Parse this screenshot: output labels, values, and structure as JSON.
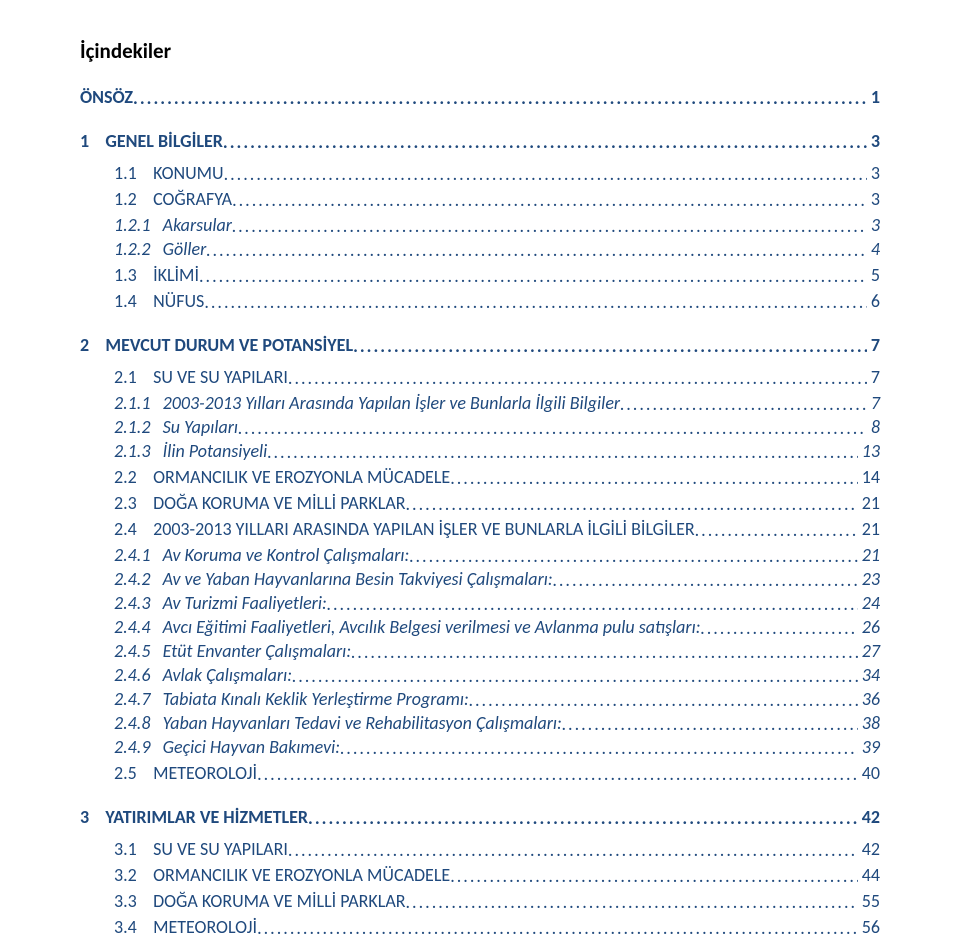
{
  "title": "İçindekiler",
  "color_primary": "#1f497d",
  "rows": [
    {
      "level": 0,
      "bold": true,
      "italic": false,
      "label": "ÖNSÖZ",
      "page": "1",
      "cls": "first-block"
    },
    {
      "level": 0,
      "bold": true,
      "italic": false,
      "label": "1    GENEL BİLGİLER",
      "page": "3"
    },
    {
      "level": 1,
      "bold": false,
      "italic": false,
      "smallcaps": true,
      "label": "1.1    KONUMU",
      "page": "3"
    },
    {
      "level": 1,
      "bold": false,
      "italic": false,
      "smallcaps": true,
      "label": "1.2    COĞRAFYA",
      "page": "3"
    },
    {
      "level": 2,
      "bold": false,
      "italic": true,
      "label": "1.2.1   Akarsular",
      "page": "3"
    },
    {
      "level": 2,
      "bold": false,
      "italic": true,
      "label": "1.2.2   Göller",
      "page": "4"
    },
    {
      "level": 1,
      "bold": false,
      "italic": false,
      "smallcaps": true,
      "label": "1.3    İKLİMİ",
      "page": "5"
    },
    {
      "level": 1,
      "bold": false,
      "italic": false,
      "smallcaps": true,
      "label": "1.4    NÜFUS",
      "page": "6"
    },
    {
      "level": 0,
      "bold": true,
      "italic": false,
      "label": "2    MEVCUT DURUM VE POTANSİYEL",
      "page": "7"
    },
    {
      "level": 1,
      "bold": false,
      "italic": false,
      "smallcaps": true,
      "label": "2.1    SU VE SU YAPILARI",
      "page": "7"
    },
    {
      "level": 2,
      "bold": false,
      "italic": true,
      "label": "2.1.1   2003-2013 Yılları Arasında Yapılan İşler ve Bunlarla İlgili Bilgiler",
      "page": "7"
    },
    {
      "level": 2,
      "bold": false,
      "italic": true,
      "label": "2.1.2   Su Yapıları",
      "page": "8"
    },
    {
      "level": 2,
      "bold": false,
      "italic": true,
      "label": "2.1.3   İlin Potansiyeli",
      "page": "13"
    },
    {
      "level": 1,
      "bold": false,
      "italic": false,
      "smallcaps": true,
      "label": "2.2    ORMANCILIK VE EROZYONLA MÜCADELE",
      "page": "14"
    },
    {
      "level": 1,
      "bold": false,
      "italic": false,
      "smallcaps": true,
      "label": "2.3    DOĞA KORUMA VE MİLLİ PARKLAR",
      "page": "21"
    },
    {
      "level": 1,
      "bold": false,
      "italic": false,
      "smallcaps": true,
      "label": "2.4    2003-2013 YILLARI ARASINDA YAPILAN İŞLER VE BUNLARLA İLGİLİ BİLGİLER",
      "page": "21"
    },
    {
      "level": 2,
      "bold": false,
      "italic": true,
      "label": "2.4.1   Av Koruma ve Kontrol Çalışmaları:",
      "page": "21"
    },
    {
      "level": 2,
      "bold": false,
      "italic": true,
      "label": "2.4.2   Av ve Yaban Hayvanlarına Besin Takviyesi Çalışmaları:",
      "page": "23"
    },
    {
      "level": 2,
      "bold": false,
      "italic": true,
      "label": "2.4.3   Av Turizmi Faaliyetleri:",
      "page": "24"
    },
    {
      "level": 2,
      "bold": false,
      "italic": true,
      "label": "2.4.4   Avcı Eğitimi Faaliyetleri, Avcılık Belgesi verilmesi ve Avlanma pulu satışları:",
      "page": "26"
    },
    {
      "level": 2,
      "bold": false,
      "italic": true,
      "label": "2.4.5   Etüt Envanter Çalışmaları:",
      "page": "27"
    },
    {
      "level": 2,
      "bold": false,
      "italic": true,
      "label": "2.4.6   Avlak Çalışmaları:",
      "page": "34"
    },
    {
      "level": 2,
      "bold": false,
      "italic": true,
      "label": "2.4.7   Tabiata Kınalı Keklik Yerleştirme Programı:",
      "page": "36"
    },
    {
      "level": 2,
      "bold": false,
      "italic": true,
      "label": "2.4.8   Yaban Hayvanları Tedavi ve Rehabilitasyon Çalışmaları:",
      "page": "38"
    },
    {
      "level": 2,
      "bold": false,
      "italic": true,
      "label": "2.4.9   Geçici Hayvan Bakımevi:",
      "page": "39"
    },
    {
      "level": 1,
      "bold": false,
      "italic": false,
      "smallcaps": true,
      "label": "2.5    METEOROLOJİ",
      "page": "40"
    },
    {
      "level": 0,
      "bold": true,
      "italic": false,
      "label": "3    YATIRIMLAR VE HİZMETLER",
      "page": "42"
    },
    {
      "level": 1,
      "bold": false,
      "italic": false,
      "smallcaps": true,
      "label": "3.1    SU VE SU YAPILARI",
      "page": "42"
    },
    {
      "level": 1,
      "bold": false,
      "italic": false,
      "smallcaps": true,
      "label": "3.2    ORMANCILIK VE EROZYONLA MÜCADELE",
      "page": "44"
    },
    {
      "level": 1,
      "bold": false,
      "italic": false,
      "smallcaps": true,
      "label": "3.3    DOĞA KORUMA VE MİLLİ PARKLAR",
      "page": "55"
    },
    {
      "level": 1,
      "bold": false,
      "italic": false,
      "smallcaps": true,
      "label": "3.4    METEOROLOJİ",
      "page": "56"
    }
  ]
}
